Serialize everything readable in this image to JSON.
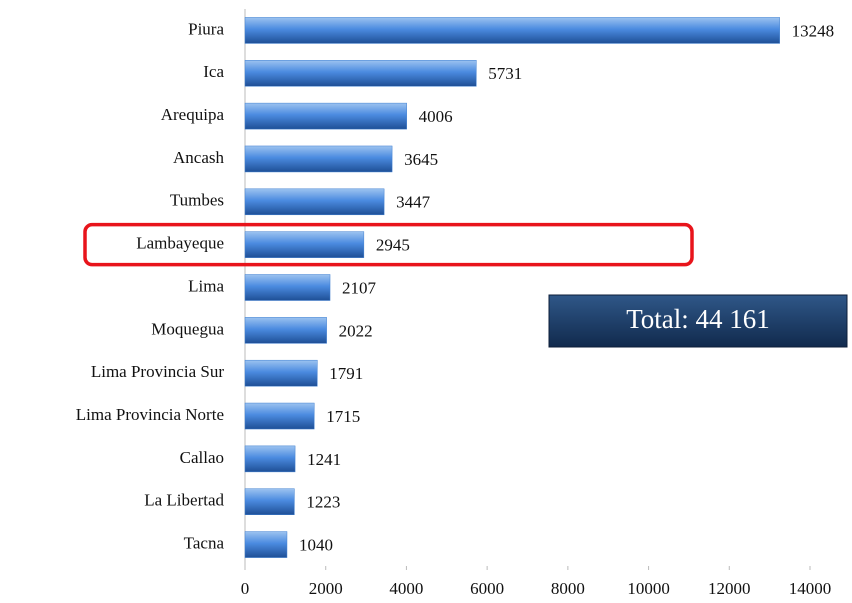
{
  "chart_data": {
    "type": "bar",
    "orientation": "horizontal",
    "categories": [
      "Piura",
      "Ica",
      "Arequipa",
      "Ancash",
      "Tumbes",
      "Lambayeque",
      "Lima",
      "Moquegua",
      "Lima Provincia Sur",
      "Lima Provincia Norte",
      "Callao",
      "La Libertad",
      "Tacna"
    ],
    "values": [
      13248,
      5731,
      4006,
      3645,
      3447,
      2945,
      2107,
      2022,
      1791,
      1715,
      1241,
      1223,
      1040
    ],
    "color": "#3f7fd0",
    "xlim": [
      0,
      14000
    ],
    "xticks": [
      0,
      2000,
      4000,
      6000,
      8000,
      10000,
      12000,
      14000
    ],
    "grid": false,
    "highlight_category": "Lambayeque",
    "highlight_color": "#e8141b",
    "annotation": "Total: 44 161"
  }
}
